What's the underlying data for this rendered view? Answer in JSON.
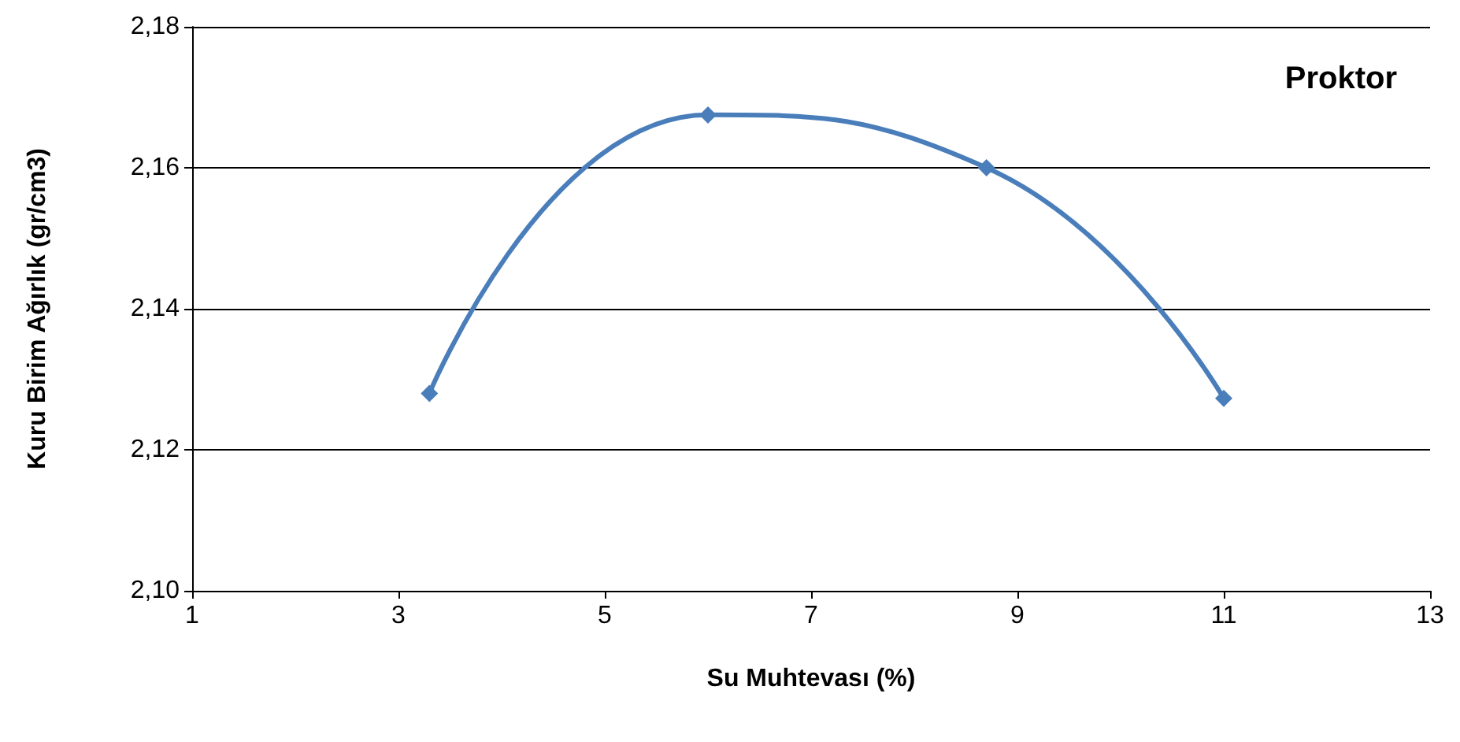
{
  "chart_data": {
    "type": "line",
    "xlabel": "Su Muhtevası (%)",
    "ylabel": "Kuru Birim Ağırlık (gr/cm3)",
    "x": [
      3.3,
      6.0,
      8.7,
      11.0
    ],
    "series": [
      {
        "color": "#4a7ebb",
        "values": [
          2.128,
          2.1675,
          2.16,
          2.1273
        ]
      }
    ],
    "xlim": [
      1,
      13
    ],
    "xticks": [
      1,
      3,
      5,
      7,
      9,
      11,
      13
    ],
    "ylim": [
      2.1,
      2.18
    ],
    "yticks": [
      {
        "value": 2.1,
        "label": "2,10"
      },
      {
        "value": 2.12,
        "label": "2,12"
      },
      {
        "value": 2.14,
        "label": "2,14"
      },
      {
        "value": 2.16,
        "label": "2,16"
      },
      {
        "value": 2.18,
        "label": "2,18"
      }
    ],
    "annotations": [
      "Proktor"
    ],
    "grid": "y",
    "marker": "diamond",
    "line_style": "solid"
  }
}
